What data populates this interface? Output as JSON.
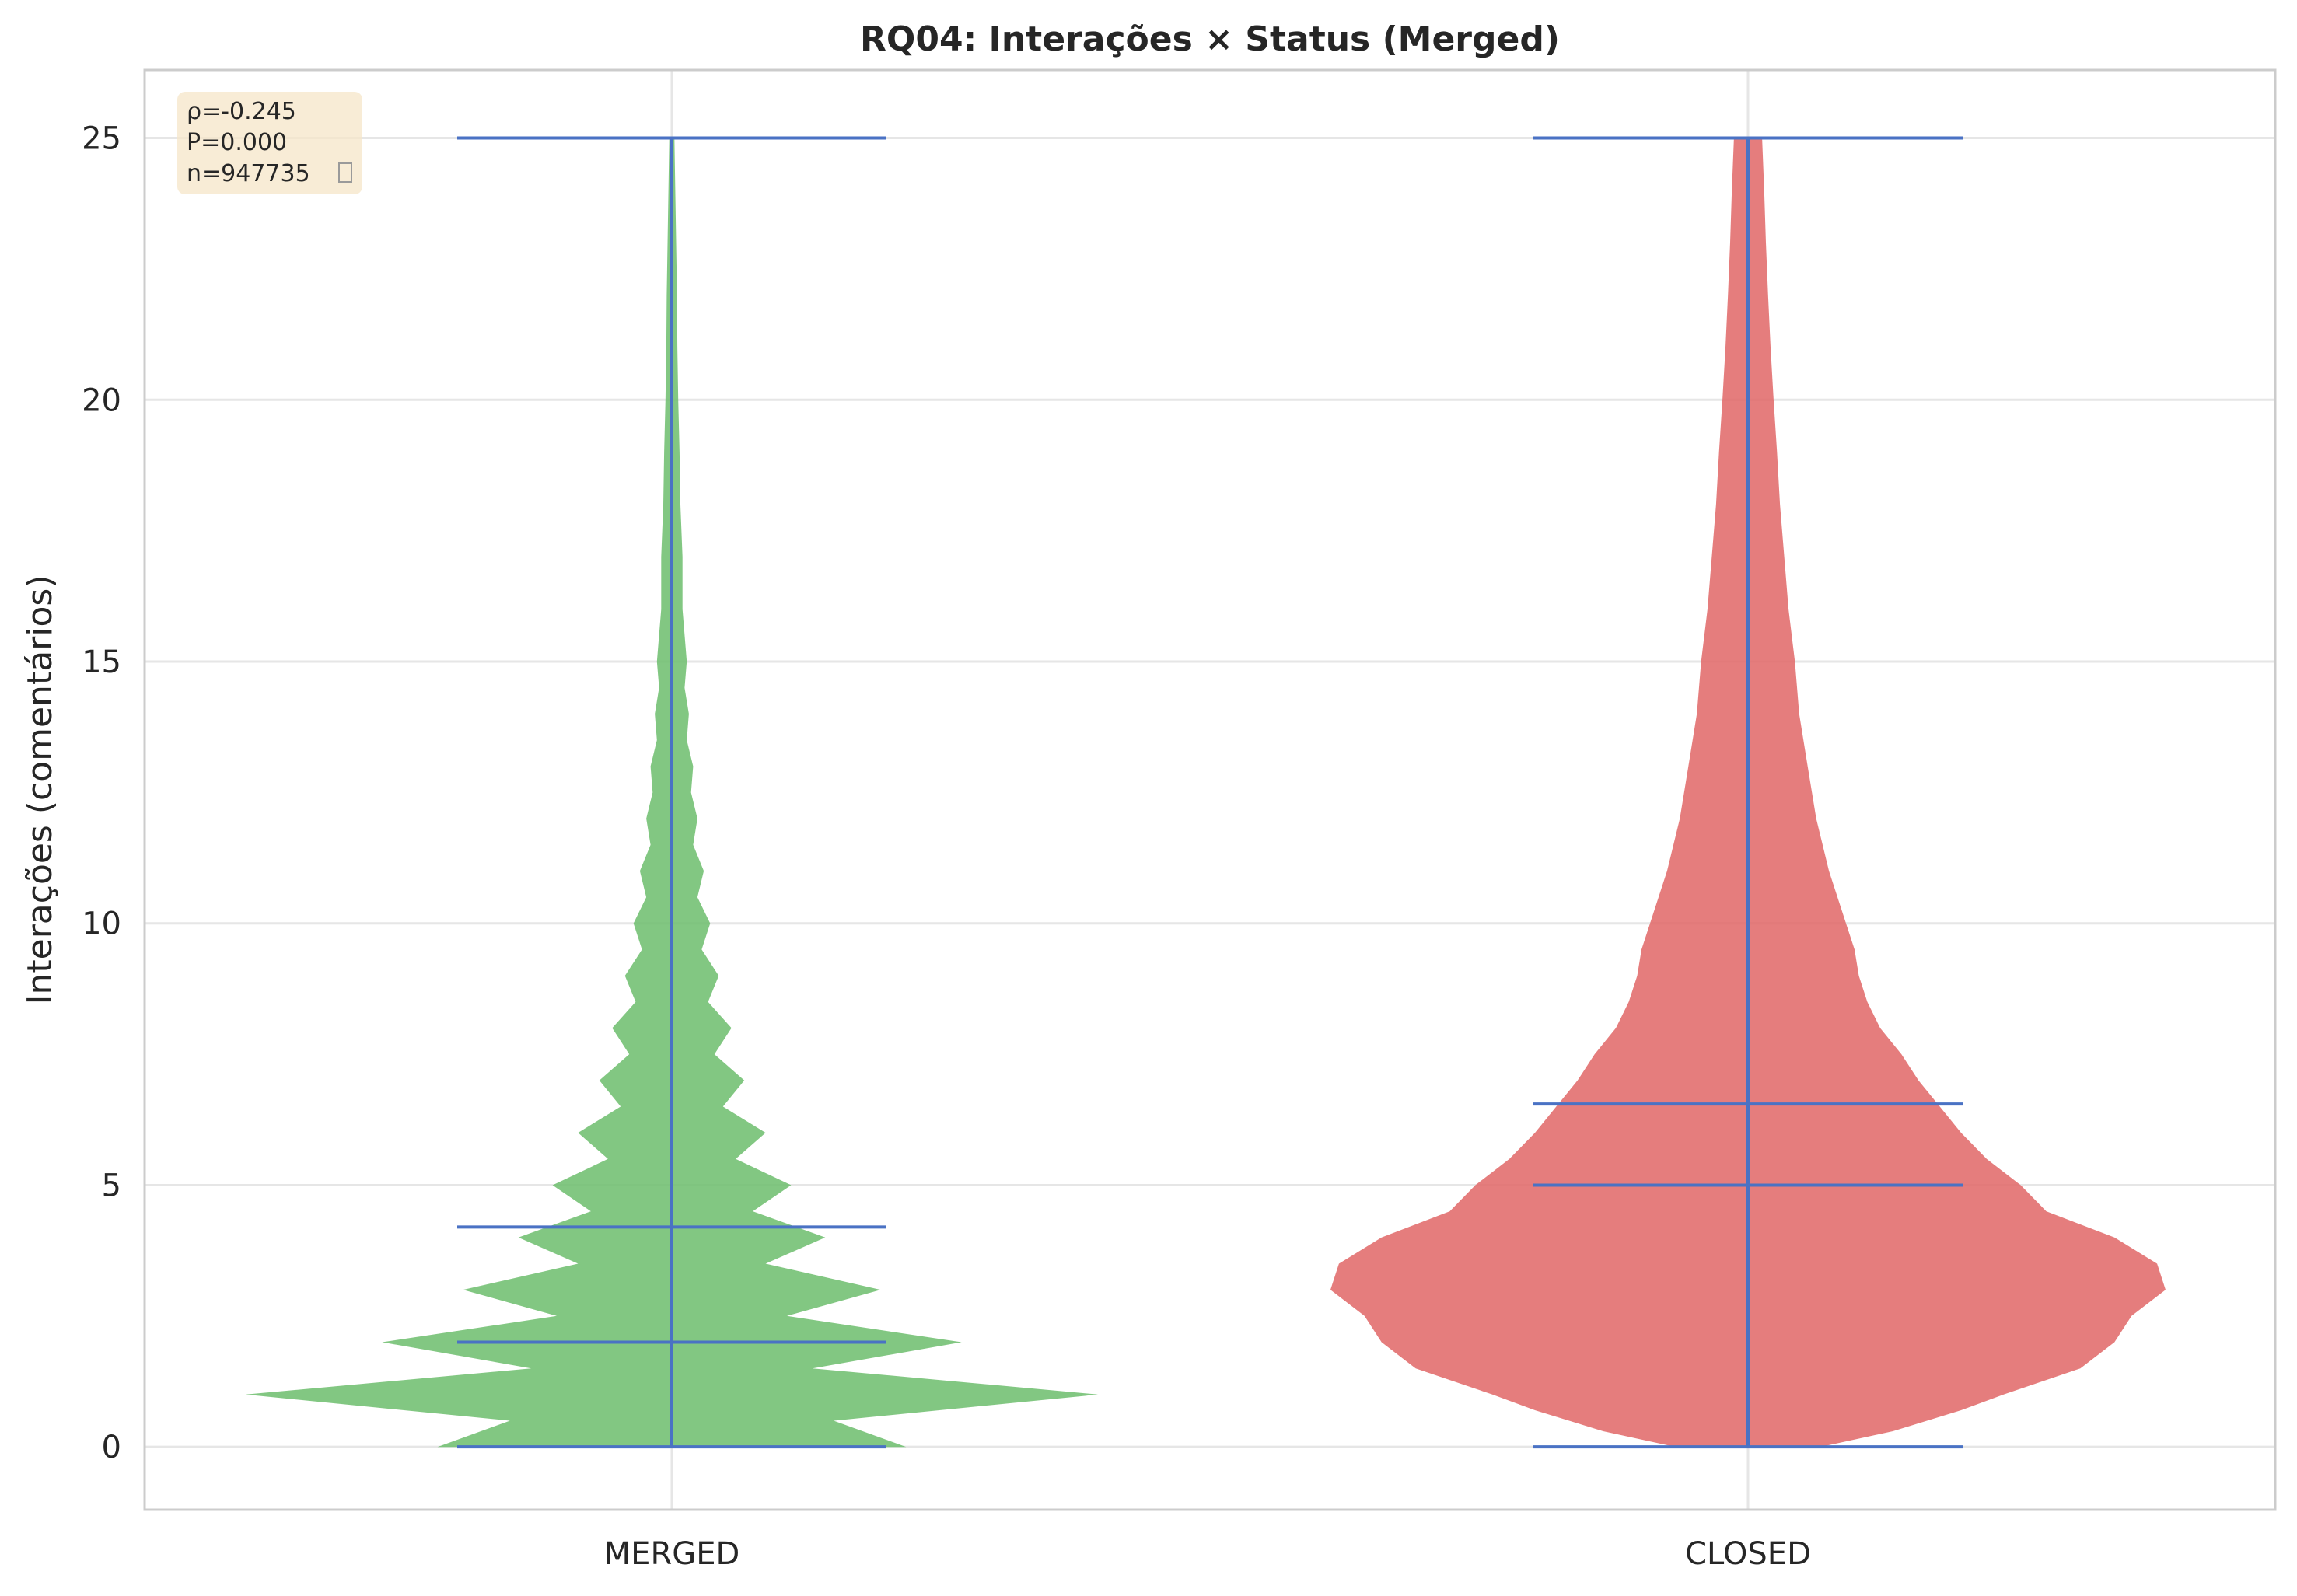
{
  "chart_data": {
    "type": "violin",
    "title": "RQ04: Interações × Status (Merged)",
    "xlabel": "",
    "ylabel": "Interações (comentários)",
    "ylim": [
      -1.2,
      26.3
    ],
    "yticks": [
      0,
      5,
      10,
      15,
      20,
      25
    ],
    "ytick_labels": [
      "0",
      "5",
      "10",
      "15",
      "20",
      "25"
    ],
    "categories": [
      "MERGED",
      "CLOSED"
    ],
    "grid": true,
    "stats_box": {
      "lines": [
        "ρ=-0.245",
        "P=0.000",
        "n=947735"
      ],
      "background": "#f5e6c8",
      "placement": "top-left"
    },
    "series": [
      {
        "category": "MERGED",
        "color": "#6cbd6c",
        "min": 0,
        "max": 25,
        "median": 2,
        "mean": 4.2,
        "density_profile": [
          [
            0,
            0.55
          ],
          [
            0.5,
            0.38
          ],
          [
            1,
            1.0
          ],
          [
            1.5,
            0.33
          ],
          [
            2,
            0.68
          ],
          [
            2.5,
            0.27
          ],
          [
            3,
            0.49
          ],
          [
            3.5,
            0.22
          ],
          [
            4,
            0.36
          ],
          [
            4.5,
            0.19
          ],
          [
            5,
            0.28
          ],
          [
            5.5,
            0.15
          ],
          [
            6,
            0.22
          ],
          [
            6.5,
            0.12
          ],
          [
            7,
            0.17
          ],
          [
            7.5,
            0.1
          ],
          [
            8,
            0.14
          ],
          [
            8.5,
            0.085
          ],
          [
            9,
            0.11
          ],
          [
            9.5,
            0.07
          ],
          [
            10,
            0.09
          ],
          [
            10.5,
            0.06
          ],
          [
            11,
            0.075
          ],
          [
            11.5,
            0.05
          ],
          [
            12,
            0.06
          ],
          [
            12.5,
            0.045
          ],
          [
            13,
            0.05
          ],
          [
            13.5,
            0.035
          ],
          [
            14,
            0.04
          ],
          [
            14.5,
            0.03
          ],
          [
            15,
            0.035
          ],
          [
            16,
            0.025
          ],
          [
            17,
            0.025
          ],
          [
            18,
            0.02
          ],
          [
            19,
            0.018
          ],
          [
            20,
            0.015
          ],
          [
            21,
            0.013
          ],
          [
            22,
            0.012
          ],
          [
            23,
            0.01
          ],
          [
            24,
            0.008
          ],
          [
            25,
            0.006
          ]
        ]
      },
      {
        "category": "CLOSED",
        "color": "#e06666",
        "min": 0,
        "max": 25,
        "median": 5,
        "mean": 6.55,
        "density_profile": [
          [
            0,
            0.17
          ],
          [
            0.3,
            0.34
          ],
          [
            0.7,
            0.5
          ],
          [
            1,
            0.6
          ],
          [
            1.5,
            0.78
          ],
          [
            2,
            0.86
          ],
          [
            2.5,
            0.9
          ],
          [
            3,
            0.98
          ],
          [
            3.5,
            0.96
          ],
          [
            4,
            0.86
          ],
          [
            4.5,
            0.7
          ],
          [
            5,
            0.64
          ],
          [
            5.5,
            0.56
          ],
          [
            6,
            0.5
          ],
          [
            6.5,
            0.45
          ],
          [
            7,
            0.4
          ],
          [
            7.5,
            0.36
          ],
          [
            8,
            0.31
          ],
          [
            8.5,
            0.28
          ],
          [
            9,
            0.26
          ],
          [
            9.5,
            0.25
          ],
          [
            10,
            0.23
          ],
          [
            11,
            0.19
          ],
          [
            12,
            0.16
          ],
          [
            13,
            0.14
          ],
          [
            14,
            0.12
          ],
          [
            15,
            0.11
          ],
          [
            16,
            0.095
          ],
          [
            17,
            0.085
          ],
          [
            18,
            0.075
          ],
          [
            19,
            0.068
          ],
          [
            20,
            0.06
          ],
          [
            21,
            0.053
          ],
          [
            22,
            0.047
          ],
          [
            23,
            0.042
          ],
          [
            24,
            0.038
          ],
          [
            25,
            0.033
          ]
        ]
      }
    ],
    "colors": {
      "lines": "#4a72c4",
      "grid": "#e6e6e6",
      "axes": "#cccccc"
    }
  }
}
